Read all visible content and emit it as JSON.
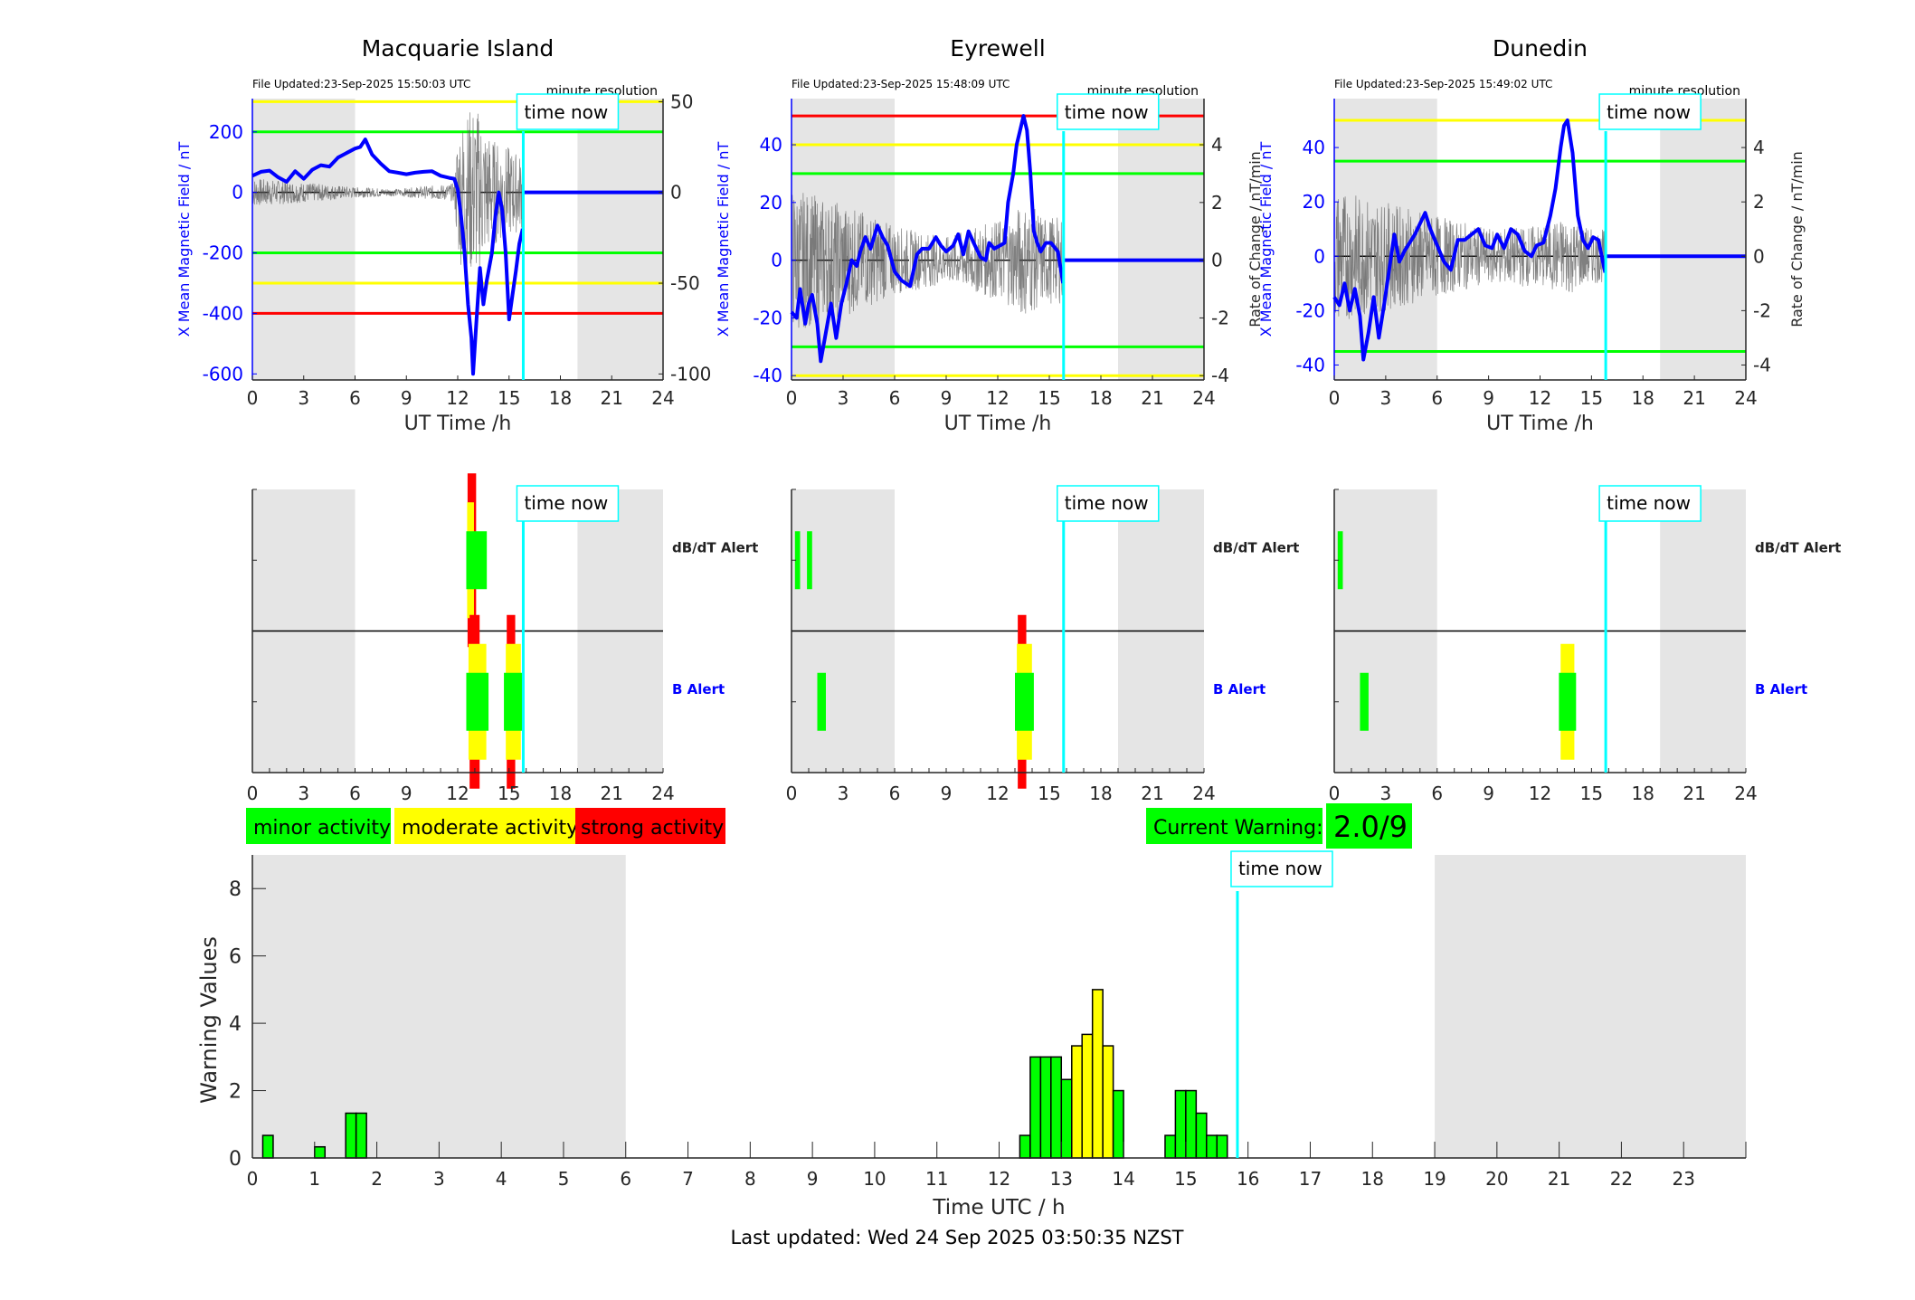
{
  "colors": {
    "night_shade": "#e5e5e5",
    "field_line": "#0000ff",
    "rate_line": "#555555",
    "time_now": "#00ffff",
    "minor": "#00ff00",
    "moderate": "#ffff00",
    "strong": "#ff0000",
    "axis": "#262626",
    "left_axis": "#0000ff"
  },
  "top_panels": [
    {
      "station": "Macquarie Island",
      "file_updated": "File Updated:23-Sep-2025 15:50:03 UTC",
      "resolution": "minute resolution",
      "time_now_label": "time now",
      "xlabel": "UT Time /h",
      "ylabel_left": "X Mean Magnetic Field / nT",
      "ylabel_right": "",
      "left_ticks": [
        200,
        0,
        -200,
        -400,
        -600
      ],
      "left_ylim": [
        -620,
        310
      ],
      "right_ticks": [
        50,
        0,
        -50,
        -100
      ],
      "right_ylim": [
        -103.3,
        51.7
      ],
      "x_ticks": [
        0,
        3,
        6,
        9,
        12,
        15,
        18,
        21,
        24
      ],
      "night_shade_hours": [
        [
          0,
          6
        ],
        [
          19,
          24
        ]
      ],
      "time_now_hour": 15.83,
      "thresholds": [
        {
          "value": 300,
          "color": "yellow"
        },
        {
          "value": 200,
          "color": "green"
        },
        {
          "value": -200,
          "color": "green"
        },
        {
          "value": -300,
          "color": "yellow"
        },
        {
          "value": -400,
          "color": "red"
        }
      ],
      "field_series": [
        [
          0,
          55
        ],
        [
          0.5,
          68
        ],
        [
          1,
          72
        ],
        [
          1.5,
          50
        ],
        [
          2,
          35
        ],
        [
          2.5,
          70
        ],
        [
          3,
          45
        ],
        [
          3.5,
          75
        ],
        [
          4,
          90
        ],
        [
          4.5,
          85
        ],
        [
          5,
          115
        ],
        [
          5.5,
          130
        ],
        [
          6,
          145
        ],
        [
          6.3,
          150
        ],
        [
          6.6,
          175
        ],
        [
          7,
          125
        ],
        [
          7.5,
          95
        ],
        [
          8,
          70
        ],
        [
          8.5,
          65
        ],
        [
          9,
          60
        ],
        [
          9.5,
          65
        ],
        [
          10,
          68
        ],
        [
          10.5,
          70
        ],
        [
          11,
          55
        ],
        [
          11.5,
          48
        ],
        [
          11.8,
          45
        ],
        [
          12,
          10
        ],
        [
          12.2,
          -80
        ],
        [
          12.4,
          -200
        ],
        [
          12.6,
          -370
        ],
        [
          12.8,
          -480
        ],
        [
          12.9,
          -600
        ],
        [
          13.1,
          -420
        ],
        [
          13.3,
          -250
        ],
        [
          13.5,
          -370
        ],
        [
          13.7,
          -290
        ],
        [
          14,
          -200
        ],
        [
          14.2,
          -80
        ],
        [
          14.4,
          0
        ],
        [
          14.6,
          -60
        ],
        [
          14.8,
          -200
        ],
        [
          15,
          -420
        ],
        [
          15.2,
          -340
        ],
        [
          15.4,
          -260
        ],
        [
          15.6,
          -170
        ],
        [
          15.8,
          -120
        ]
      ],
      "rate_amplitude": [
        [
          0,
          8
        ],
        [
          6,
          3
        ],
        [
          8.5,
          2
        ],
        [
          11.8,
          5
        ],
        [
          12,
          38
        ],
        [
          13,
          50
        ],
        [
          14,
          30
        ],
        [
          15,
          25
        ],
        [
          15.8,
          20
        ]
      ]
    },
    {
      "station": "Eyrewell",
      "file_updated": "File Updated:23-Sep-2025 15:48:09 UTC",
      "resolution": "minute resolution",
      "time_now_label": "time now",
      "xlabel": "UT Time /h",
      "ylabel_left": "X Mean Magnetic Field / nT",
      "ylabel_right": "Rate of Change / nT/min",
      "left_ticks": [
        40,
        20,
        0,
        -20,
        -40
      ],
      "left_ylim": [
        -41.5,
        56
      ],
      "right_ticks": [
        4,
        2,
        0,
        -2,
        -4
      ],
      "right_ylim": [
        -4.15,
        5.6
      ],
      "x_ticks": [
        0,
        3,
        6,
        9,
        12,
        15,
        18,
        21,
        24
      ],
      "night_shade_hours": [
        [
          0,
          6
        ],
        [
          19,
          24
        ]
      ],
      "time_now_hour": 15.83,
      "thresholds": [
        {
          "value": 50,
          "color": "red"
        },
        {
          "value": 40,
          "color": "yellow"
        },
        {
          "value": 30,
          "color": "green"
        },
        {
          "value": -30,
          "color": "green"
        },
        {
          "value": -40,
          "color": "yellow"
        }
      ],
      "field_series": [
        [
          0,
          -18
        ],
        [
          0.3,
          -20
        ],
        [
          0.5,
          -10
        ],
        [
          0.8,
          -22
        ],
        [
          1,
          -15
        ],
        [
          1.2,
          -12
        ],
        [
          1.5,
          -22
        ],
        [
          1.7,
          -35
        ],
        [
          2,
          -25
        ],
        [
          2.3,
          -15
        ],
        [
          2.6,
          -27
        ],
        [
          2.9,
          -15
        ],
        [
          3.2,
          -8
        ],
        [
          3.5,
          0
        ],
        [
          3.8,
          -2
        ],
        [
          4,
          3
        ],
        [
          4.3,
          8
        ],
        [
          4.6,
          4
        ],
        [
          5,
          12
        ],
        [
          5.3,
          8
        ],
        [
          5.6,
          5
        ],
        [
          6,
          -4
        ],
        [
          6.4,
          -7
        ],
        [
          6.9,
          -9
        ],
        [
          7.3,
          2
        ],
        [
          7.6,
          4
        ],
        [
          8,
          4
        ],
        [
          8.4,
          8
        ],
        [
          8.7,
          5
        ],
        [
          9,
          3
        ],
        [
          9.4,
          5
        ],
        [
          9.7,
          9
        ],
        [
          10,
          2
        ],
        [
          10.3,
          10
        ],
        [
          10.6,
          6
        ],
        [
          11,
          1
        ],
        [
          11.3,
          0
        ],
        [
          11.5,
          6
        ],
        [
          11.8,
          4
        ],
        [
          12.1,
          5
        ],
        [
          12.4,
          6
        ],
        [
          12.6,
          20
        ],
        [
          12.9,
          30
        ],
        [
          13.1,
          40
        ],
        [
          13.3,
          45
        ],
        [
          13.5,
          50
        ],
        [
          13.7,
          45
        ],
        [
          13.9,
          30
        ],
        [
          14.1,
          10
        ],
        [
          14.3,
          6
        ],
        [
          14.5,
          3
        ],
        [
          14.8,
          6
        ],
        [
          15.1,
          6
        ],
        [
          15.5,
          3
        ],
        [
          15.8,
          -8
        ]
      ],
      "rate_amplitude": [
        [
          0,
          2.5
        ],
        [
          3,
          2
        ],
        [
          6,
          1.2
        ],
        [
          9,
          0.8
        ],
        [
          12.5,
          1.5
        ],
        [
          13.5,
          2
        ],
        [
          15,
          1.5
        ],
        [
          15.8,
          1.5
        ]
      ]
    },
    {
      "station": "Dunedin",
      "file_updated": "File Updated:23-Sep-2025 15:49:02 UTC",
      "resolution": "minute resolution",
      "time_now_label": "time now",
      "xlabel": "UT Time /h",
      "ylabel_left": "X Mean Magnetic Field / nT",
      "ylabel_right": "Rate of Change / nT/min",
      "left_ticks": [
        40,
        20,
        0,
        -20,
        -40
      ],
      "left_ylim": [
        -45.5,
        58
      ],
      "right_ticks": [
        4,
        2,
        0,
        -2,
        -4
      ],
      "right_ylim": [
        -4.55,
        5.8
      ],
      "x_ticks": [
        0,
        3,
        6,
        9,
        12,
        15,
        18,
        21,
        24
      ],
      "night_shade_hours": [
        [
          0,
          6
        ],
        [
          19,
          24
        ]
      ],
      "time_now_hour": 15.83,
      "thresholds": [
        {
          "value": 50,
          "color": "yellow"
        },
        {
          "value": 35,
          "color": "green"
        },
        {
          "value": -35,
          "color": "green"
        }
      ],
      "field_series": [
        [
          0,
          -15
        ],
        [
          0.3,
          -18
        ],
        [
          0.6,
          -10
        ],
        [
          0.9,
          -20
        ],
        [
          1.2,
          -12
        ],
        [
          1.5,
          -22
        ],
        [
          1.7,
          -38
        ],
        [
          2,
          -28
        ],
        [
          2.3,
          -15
        ],
        [
          2.6,
          -30
        ],
        [
          2.9,
          -18
        ],
        [
          3.2,
          -5
        ],
        [
          3.5,
          8
        ],
        [
          3.8,
          -2
        ],
        [
          4.1,
          2
        ],
        [
          4.4,
          5
        ],
        [
          4.7,
          8
        ],
        [
          5,
          12
        ],
        [
          5.3,
          16
        ],
        [
          5.6,
          10
        ],
        [
          6,
          4
        ],
        [
          6.4,
          -2
        ],
        [
          6.8,
          -5
        ],
        [
          7.2,
          6
        ],
        [
          7.6,
          6
        ],
        [
          8,
          8
        ],
        [
          8.4,
          10
        ],
        [
          8.8,
          4
        ],
        [
          9.2,
          3
        ],
        [
          9.5,
          8
        ],
        [
          9.9,
          3
        ],
        [
          10.3,
          10
        ],
        [
          10.7,
          8
        ],
        [
          11.1,
          2
        ],
        [
          11.5,
          0
        ],
        [
          11.8,
          4
        ],
        [
          12.2,
          5
        ],
        [
          12.6,
          15
        ],
        [
          12.9,
          25
        ],
        [
          13.2,
          40
        ],
        [
          13.4,
          48
        ],
        [
          13.6,
          50
        ],
        [
          13.9,
          38
        ],
        [
          14.2,
          15
        ],
        [
          14.5,
          6
        ],
        [
          14.8,
          3
        ],
        [
          15.1,
          7
        ],
        [
          15.4,
          6
        ],
        [
          15.8,
          -6
        ]
      ],
      "rate_amplitude": [
        [
          0,
          2.5
        ],
        [
          3,
          2
        ],
        [
          6,
          1.5
        ],
        [
          9,
          1
        ],
        [
          12.5,
          1.2
        ],
        [
          13.5,
          1.5
        ],
        [
          15,
          1
        ],
        [
          15.8,
          1
        ]
      ]
    }
  ],
  "alert_panels": [
    {
      "station": "Macquarie Island",
      "time_now_label": "time now",
      "dbdt_label": "dB/dT Alert",
      "b_label": "B Alert",
      "x_ticks": [
        0,
        3,
        6,
        9,
        12,
        15,
        18,
        21,
        24
      ],
      "night_shade_hours": [
        [
          0,
          6
        ],
        [
          19,
          24
        ]
      ],
      "time_now_hour": 15.83,
      "dbdt_events": [
        {
          "start": 12.5,
          "end": 13.0,
          "level": 3,
          "green_end": 13.7
        }
      ],
      "b_events": [
        {
          "start": 12.5,
          "end": 13.8,
          "level": 3
        },
        {
          "start": 14.7,
          "end": 15.8,
          "level": 3
        }
      ]
    },
    {
      "station": "Eyrewell",
      "time_now_label": "time now",
      "dbdt_label": "dB/dT Alert",
      "b_label": "B Alert",
      "x_ticks": [
        0,
        3,
        6,
        9,
        12,
        15,
        18,
        21,
        24
      ],
      "night_shade_hours": [
        [
          0,
          6
        ],
        [
          19,
          24
        ]
      ],
      "time_now_hour": 15.83,
      "dbdt_events": [
        {
          "start": 0.2,
          "end": 0.5,
          "level": 1
        },
        {
          "start": 0.9,
          "end": 1.2,
          "level": 1
        }
      ],
      "b_events": [
        {
          "start": 1.5,
          "end": 2.0,
          "level": 1
        },
        {
          "start": 13.0,
          "end": 14.1,
          "level": 3
        }
      ]
    },
    {
      "station": "Dunedin",
      "time_now_label": "time now",
      "dbdt_label": "dB/dT Alert",
      "b_label": "B Alert",
      "x_ticks": [
        0,
        3,
        6,
        9,
        12,
        15,
        18,
        21,
        24
      ],
      "night_shade_hours": [
        [
          0,
          6
        ],
        [
          19,
          24
        ]
      ],
      "time_now_hour": 15.83,
      "dbdt_events": [
        {
          "start": 0.2,
          "end": 0.5,
          "level": 1
        }
      ],
      "b_events": [
        {
          "start": 1.5,
          "end": 2.0,
          "level": 1
        },
        {
          "start": 13.1,
          "end": 14.1,
          "level": 2
        }
      ]
    }
  ],
  "legend": {
    "minor": "minor activity",
    "moderate": "moderate activity",
    "strong": "strong activity"
  },
  "current_warning": {
    "label": "Current Warning:",
    "value": "2.0/9"
  },
  "chart_data": {
    "type": "bar",
    "title": "",
    "xlabel": "Time UTC / h",
    "ylabel": "Warning Values",
    "xlim": [
      0,
      24
    ],
    "ylim": [
      0,
      9
    ],
    "x_ticks": [
      0,
      1,
      2,
      3,
      4,
      5,
      6,
      7,
      8,
      9,
      10,
      11,
      12,
      13,
      14,
      15,
      16,
      17,
      18,
      19,
      20,
      21,
      22,
      23
    ],
    "y_ticks": [
      0,
      2,
      4,
      6,
      8
    ],
    "bin_width_hours": 0.1667,
    "night_shade_hours": [
      [
        0,
        6
      ],
      [
        19,
        24
      ]
    ],
    "time_now_hour": 15.83,
    "time_now_label": "time now",
    "grid": false,
    "bars": [
      {
        "start": 0.167,
        "value": 0.67,
        "color": "green"
      },
      {
        "start": 1.0,
        "value": 0.33,
        "color": "green"
      },
      {
        "start": 1.5,
        "value": 1.33,
        "color": "green"
      },
      {
        "start": 1.667,
        "value": 1.33,
        "color": "green"
      },
      {
        "start": 12.333,
        "value": 0.67,
        "color": "green"
      },
      {
        "start": 12.5,
        "value": 3.0,
        "color": "green"
      },
      {
        "start": 12.667,
        "value": 3.0,
        "color": "green"
      },
      {
        "start": 12.833,
        "value": 3.0,
        "color": "green"
      },
      {
        "start": 13.0,
        "value": 2.33,
        "color": "green"
      },
      {
        "start": 13.167,
        "value": 3.33,
        "color": "yellow"
      },
      {
        "start": 13.333,
        "value": 3.67,
        "color": "yellow"
      },
      {
        "start": 13.5,
        "value": 5.0,
        "color": "yellow"
      },
      {
        "start": 13.667,
        "value": 3.33,
        "color": "yellow"
      },
      {
        "start": 13.833,
        "value": 2.0,
        "color": "green"
      },
      {
        "start": 14.667,
        "value": 0.67,
        "color": "green"
      },
      {
        "start": 14.833,
        "value": 2.0,
        "color": "green"
      },
      {
        "start": 15.0,
        "value": 2.0,
        "color": "green"
      },
      {
        "start": 15.167,
        "value": 1.33,
        "color": "green"
      },
      {
        "start": 15.333,
        "value": 0.67,
        "color": "green"
      },
      {
        "start": 15.5,
        "value": 0.67,
        "color": "green"
      }
    ]
  },
  "footer": {
    "last_updated": "Last updated: Wed 24 Sep 2025 03:50:35 NZST"
  }
}
